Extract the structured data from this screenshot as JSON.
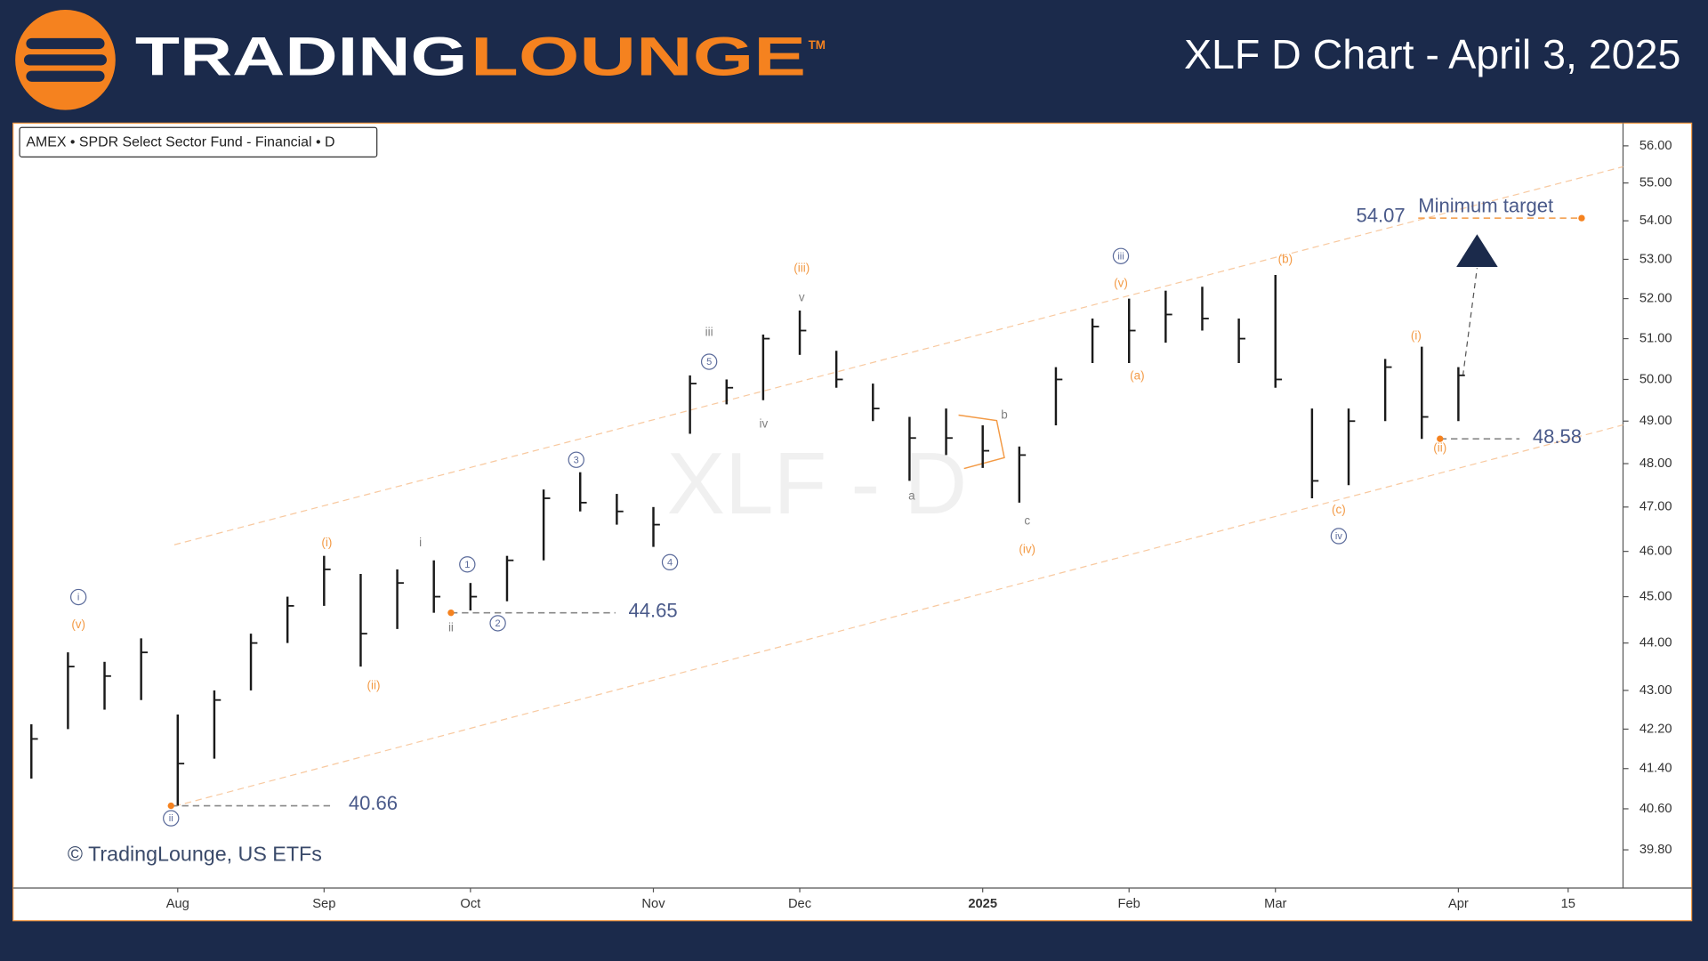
{
  "header": {
    "brand": [
      "TRADING",
      "LOUNGE"
    ],
    "trademark": "TM"
  },
  "chart_data": {
    "type": "hlc",
    "title": "XLF D Chart - April 3, 2025",
    "symbol_label": "AMEX • SPDR Select Sector Fund - Financial • D",
    "watermark": "XLF - D",
    "copyright": "© TradingLounge, US ETFs",
    "log_scale": true,
    "grid": false,
    "color": "#1a1a1a",
    "categories": [
      null,
      null,
      null,
      null,
      "Aug",
      null,
      null,
      null,
      "Sep",
      null,
      null,
      null,
      "Oct",
      null,
      null,
      null,
      null,
      "Nov",
      null,
      null,
      null,
      "Dec",
      null,
      null,
      null,
      null,
      "2025",
      null,
      null,
      null,
      "Feb",
      null,
      null,
      null,
      "Mar",
      null,
      null,
      null,
      null,
      "Apr",
      null,
      null,
      "15",
      null
    ],
    "high": [
      42.3,
      43.8,
      43.6,
      44.1,
      42.5,
      43.0,
      44.2,
      45.0,
      45.9,
      45.5,
      45.6,
      45.8,
      45.3,
      45.9,
      47.4,
      47.8,
      47.3,
      47.0,
      50.1,
      50.0,
      51.1,
      51.7,
      50.7,
      49.9,
      49.1,
      49.3,
      48.9,
      48.4,
      50.3,
      51.5,
      52.0,
      52.2,
      52.3,
      51.5,
      52.6,
      49.3,
      49.3,
      50.5,
      50.8,
      50.3,
      null,
      null,
      null,
      null
    ],
    "low": [
      41.2,
      42.2,
      42.6,
      42.8,
      40.66,
      41.6,
      43.0,
      44.0,
      44.8,
      43.5,
      44.3,
      44.65,
      44.7,
      44.9,
      45.8,
      46.9,
      46.6,
      46.1,
      48.7,
      49.4,
      49.5,
      50.6,
      49.8,
      49.0,
      47.6,
      48.2,
      47.9,
      47.1,
      48.9,
      50.4,
      50.4,
      50.9,
      51.2,
      50.4,
      49.8,
      47.2,
      47.5,
      49.0,
      48.58,
      49.0,
      null,
      null,
      null,
      null
    ],
    "close": [
      42.0,
      43.5,
      43.3,
      43.8,
      41.5,
      42.8,
      44.0,
      44.8,
      45.6,
      44.2,
      45.3,
      45.0,
      45.0,
      45.8,
      47.2,
      47.1,
      46.9,
      46.6,
      49.9,
      49.8,
      51.0,
      51.2,
      50.0,
      49.3,
      48.6,
      48.6,
      48.3,
      48.2,
      50.0,
      51.3,
      51.2,
      51.6,
      51.5,
      51.0,
      50.0,
      47.6,
      49.0,
      50.3,
      49.1,
      50.1,
      null,
      null,
      null,
      null
    ],
    "ylim": [
      39.07,
      56.62
    ],
    "yticks": [
      {
        "value": 56,
        "label": "56.00"
      },
      {
        "value": 55,
        "label": "55.00"
      },
      {
        "value": 54,
        "label": "54.00"
      },
      {
        "value": 53,
        "label": "53.00"
      },
      {
        "value": 52,
        "label": "52.00"
      },
      {
        "value": 51,
        "label": "51.00"
      },
      {
        "value": 50,
        "label": "50.00"
      },
      {
        "value": 49,
        "label": "49.00"
      },
      {
        "value": 48,
        "label": "48.00"
      },
      {
        "value": 47,
        "label": "47.00"
      },
      {
        "value": 46,
        "label": "46.00"
      },
      {
        "value": 45,
        "label": "45.00"
      },
      {
        "value": 44,
        "label": "44.00"
      },
      {
        "value": 43,
        "label": "43.00"
      },
      {
        "value": 42.2,
        "label": "42.20"
      },
      {
        "value": 41.4,
        "label": "41.40"
      },
      {
        "value": 40.6,
        "label": "40.60"
      },
      {
        "value": 39.8,
        "label": "39.80"
      }
    ],
    "levels": [
      {
        "value": 40.66
      },
      {
        "value": 44.65
      },
      {
        "value": 48.58
      },
      {
        "value": 54.07,
        "label": "Minimum target"
      }
    ],
    "wave_colors": {
      "circled": "#5b6b9b",
      "orange": "#f39a45",
      "gray": "#808080"
    },
    "wave_labels": [
      {
        "text": "i",
        "style": "circled"
      },
      {
        "text": "(v)",
        "style": "orange"
      },
      {
        "text": "ii",
        "style": "circled"
      },
      {
        "text": "(i)",
        "style": "orange"
      },
      {
        "text": "(ii)",
        "style": "orange"
      },
      {
        "text": "i",
        "style": "gray"
      },
      {
        "text": "ii",
        "style": "gray"
      },
      {
        "text": "1",
        "style": "circled"
      },
      {
        "text": "2",
        "style": "circled"
      },
      {
        "text": "3",
        "style": "circled"
      },
      {
        "text": "4",
        "style": "circled"
      },
      {
        "text": "5",
        "style": "circled"
      },
      {
        "text": "iii",
        "style": "gray"
      },
      {
        "text": "iv",
        "style": "gray"
      },
      {
        "text": "v",
        "style": "gray"
      },
      {
        "text": "(iii)",
        "style": "orange"
      },
      {
        "text": "a",
        "style": "gray"
      },
      {
        "text": "b",
        "style": "gray"
      },
      {
        "text": "c",
        "style": "gray"
      },
      {
        "text": "(iv)",
        "style": "orange"
      },
      {
        "text": "iii",
        "style": "circled"
      },
      {
        "text": "(v)",
        "style": "orange"
      },
      {
        "text": "(a)",
        "style": "orange"
      },
      {
        "text": "(b)",
        "style": "orange"
      },
      {
        "text": "(c)",
        "style": "orange"
      },
      {
        "text": "iv",
        "style": "circled"
      },
      {
        "text": "(i)",
        "style": "orange"
      },
      {
        "text": "(ii)",
        "style": "orange"
      }
    ]
  }
}
